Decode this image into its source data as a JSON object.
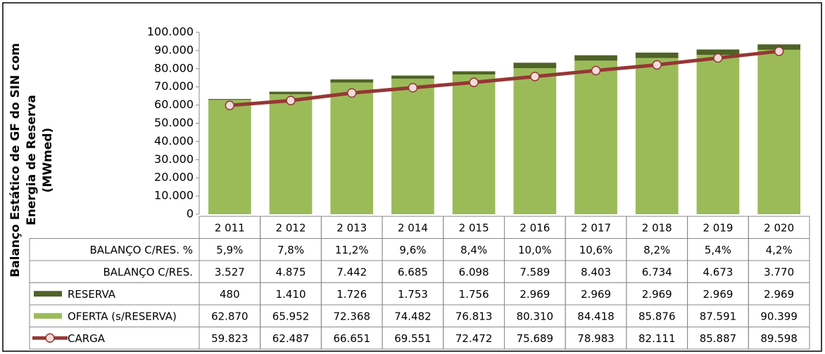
{
  "chart_data": {
    "type": "bar",
    "ylabel": [
      "Balanço Estático de GF do SIN com",
      "Energia de Reserva",
      "(MWmed)"
    ],
    "categories": [
      "2 011",
      "2 012",
      "2 013",
      "2 014",
      "2 015",
      "2 016",
      "2 017",
      "2 018",
      "2 019",
      "2 020"
    ],
    "ylim": [
      0,
      100000
    ],
    "yticks": [
      0,
      {
        "value": 10000,
        "label": "10.000"
      },
      {
        "value": 20000,
        "label": "20.000"
      },
      {
        "value": 30000,
        "label": "30.000"
      },
      {
        "value": 40000,
        "label": "40.000"
      },
      {
        "value": 50000,
        "label": "50.000"
      },
      {
        "value": 60000,
        "label": "60.000"
      },
      {
        "value": 70000,
        "label": "70.000"
      },
      {
        "value": 80000,
        "label": "80.000"
      },
      {
        "value": 90000,
        "label": "90.000"
      },
      {
        "value": 100000,
        "label": "100.000"
      }
    ],
    "grid": false,
    "table_rows": [
      {
        "name": "BALANÇO C/RES. %",
        "values": [
          5.9,
          7.8,
          11.2,
          9.6,
          8.4,
          10.0,
          10.6,
          8.2,
          5.4,
          4.2
        ],
        "value_labels": [
          "5,9%",
          "7,8%",
          "11,2%",
          "9,6%",
          "8,4%",
          "10,0%",
          "10,6%",
          "8,2%",
          "5,4%",
          "4,2%"
        ]
      },
      {
        "name": "BALANÇO C/RES.",
        "values": [
          3527,
          4875,
          7442,
          6685,
          6098,
          7589,
          8403,
          6734,
          4673,
          3770
        ],
        "value_labels": [
          "3.527",
          "4.875",
          "7.442",
          "6.685",
          "6.098",
          "7.589",
          "8.403",
          "6.734",
          "4.673",
          "3.770"
        ]
      }
    ],
    "series": [
      {
        "name": "RESERVA",
        "type": "bar",
        "color": "#4f6228",
        "values": [
          480,
          1410,
          1726,
          1753,
          1756,
          2969,
          2969,
          2969,
          2969,
          2969
        ],
        "value_labels": [
          "480",
          "1.410",
          "1.726",
          "1.753",
          "1.756",
          "2.969",
          "2.969",
          "2.969",
          "2.969",
          "2.969"
        ]
      },
      {
        "name": "OFERTA (s/RESERVA)",
        "type": "bar",
        "color": "#9bbb59",
        "values": [
          62870,
          65952,
          72368,
          74482,
          76813,
          80310,
          84418,
          85876,
          87591,
          90399
        ],
        "value_labels": [
          "62.870",
          "65.952",
          "72.368",
          "74.482",
          "76.813",
          "80.310",
          "84.418",
          "85.876",
          "87.591",
          "90.399"
        ]
      },
      {
        "name": "CARGA",
        "type": "line",
        "color": "#953735",
        "values": [
          59823,
          62487,
          66651,
          69551,
          72472,
          75689,
          78983,
          82111,
          85887,
          89598
        ],
        "value_labels": [
          "59.823",
          "62.487",
          "66.651",
          "69.551",
          "72.472",
          "75.689",
          "78.983",
          "82.111",
          "85.887",
          "89.598"
        ]
      }
    ]
  }
}
